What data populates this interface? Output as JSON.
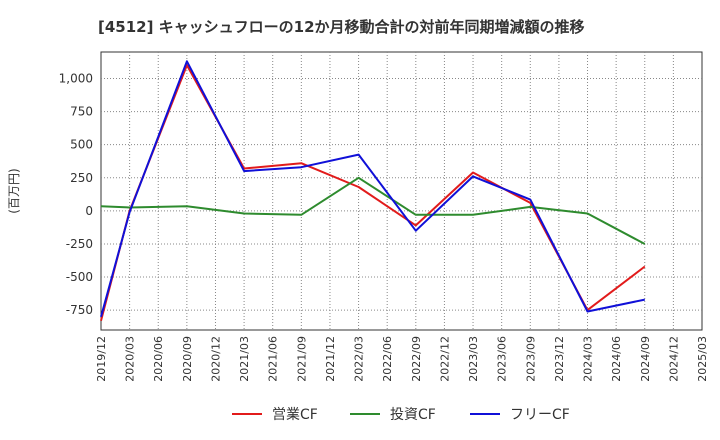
{
  "chart_data": {
    "type": "line",
    "title": "[4512]  キャッシュフローの12か月移動合計の対前年同期増減額の推移",
    "xlabel": "",
    "ylabel": "(百万円)",
    "ylim": [
      -900,
      1200
    ],
    "yticks": [
      -750,
      -500,
      -250,
      0,
      250,
      500,
      750,
      1000
    ],
    "ytick_labels": [
      "-750",
      "-500",
      "-250",
      "0",
      "250",
      "500",
      "750",
      "1,000"
    ],
    "x": [
      "2019/12",
      "2020/03",
      "2020/06",
      "2020/09",
      "2020/12",
      "2021/03",
      "2021/06",
      "2021/09",
      "2021/12",
      "2022/03",
      "2022/06",
      "2022/09",
      "2022/12",
      "2023/03",
      "2023/06",
      "2023/09",
      "2023/12",
      "2024/03",
      "2024/06",
      "2024/09",
      "2024/12",
      "2025/03"
    ],
    "grid": true,
    "legend_position": "bottom",
    "series": [
      {
        "name": "営業CF",
        "color": "#e21b1b",
        "values": [
          -830,
          0,
          null,
          1100,
          null,
          320,
          null,
          360,
          null,
          180,
          null,
          -110,
          null,
          290,
          null,
          60,
          null,
          -750,
          null,
          -420,
          null,
          null
        ]
      },
      {
        "name": "投資CF",
        "color": "#2e8b2e",
        "values": [
          35,
          25,
          null,
          35,
          null,
          -20,
          null,
          -30,
          null,
          250,
          null,
          -30,
          null,
          -30,
          null,
          30,
          null,
          -20,
          null,
          -250,
          null,
          null
        ]
      },
      {
        "name": "フリーCF",
        "color": "#1010d8",
        "values": [
          -800,
          -10,
          null,
          1130,
          null,
          300,
          null,
          330,
          null,
          425,
          null,
          -150,
          null,
          260,
          null,
          85,
          null,
          -760,
          null,
          -670,
          null,
          null
        ]
      }
    ]
  }
}
